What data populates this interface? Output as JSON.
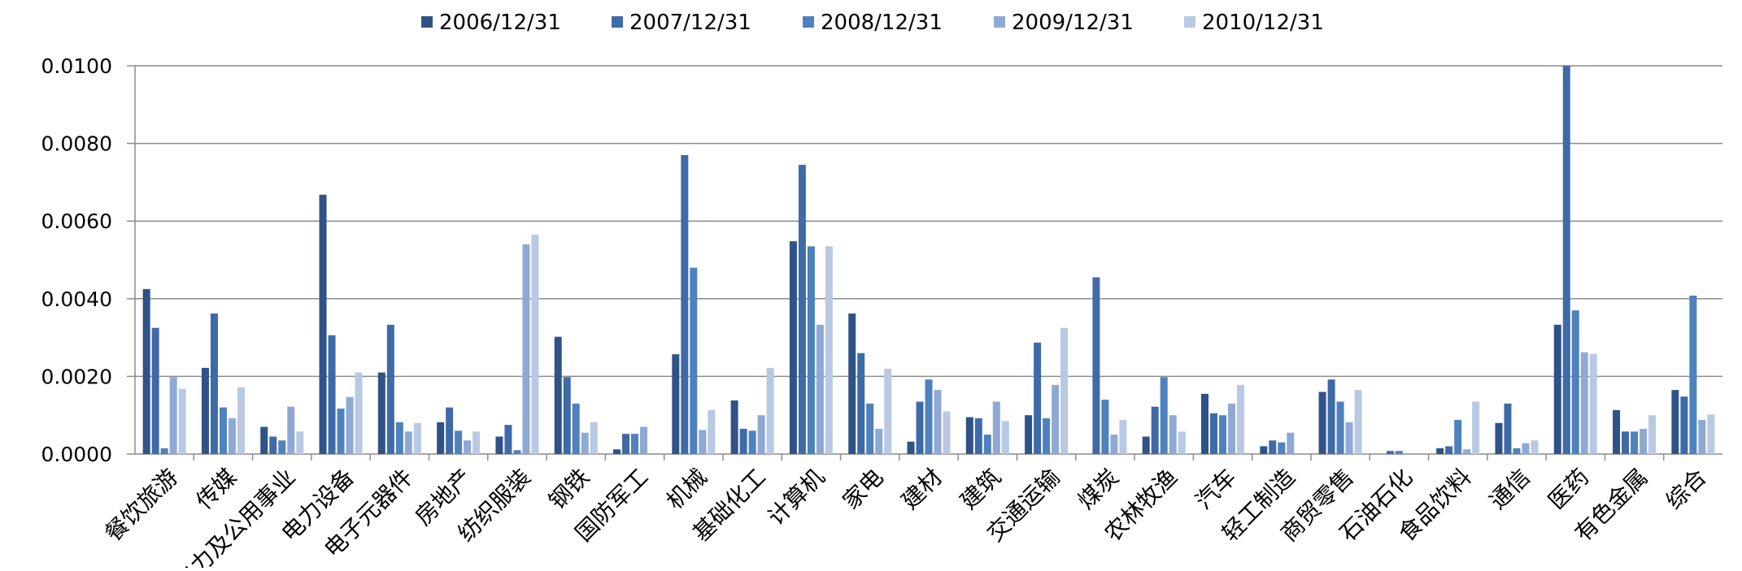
{
  "chart_data": {
    "type": "bar",
    "title": "",
    "xlabel": "",
    "ylabel": "",
    "ylim": [
      0,
      0.01
    ],
    "yticks": [
      "0.0000",
      "0.0020",
      "0.0040",
      "0.0060",
      "0.0080",
      "0.0100"
    ],
    "grid": true,
    "legend_position": "top",
    "categories": [
      "餐饮旅游",
      "传媒",
      "电力及公用事业",
      "电力设备",
      "电子元器件",
      "房地产",
      "纺织服装",
      "钢铁",
      "国防军工",
      "机械",
      "基础化工",
      "计算机",
      "家电",
      "建材",
      "建筑",
      "交通运输",
      "煤炭",
      "农林牧渔",
      "汽车",
      "轻工制造",
      "商贸零售",
      "石油石化",
      "食品饮料",
      "通信",
      "医药",
      "有色金属",
      "综合"
    ],
    "series": [
      {
        "name": "2006/12/31",
        "color": "#2f5288",
        "values": [
          0.00425,
          0.00222,
          0.0007,
          0.00668,
          0.0021,
          0.00082,
          0.00045,
          0.00302,
          0.00012,
          0.00257,
          0.00138,
          0.00548,
          0.00362,
          0.00032,
          0.00095,
          0.001,
          0.0,
          0.00045,
          0.00155,
          0.0002,
          0.0016,
          0.0,
          0.00015,
          0.0008,
          0.00333,
          0.00113,
          0.00165
        ]
      },
      {
        "name": "2007/12/31",
        "color": "#3f6aa8",
        "values": [
          0.00325,
          0.00362,
          0.00045,
          0.00306,
          0.00333,
          0.0012,
          0.00075,
          0.00198,
          0.00052,
          0.0077,
          0.00065,
          0.00745,
          0.0026,
          0.00135,
          0.00092,
          0.00287,
          0.00455,
          0.00122,
          0.00105,
          0.00035,
          0.00192,
          8e-05,
          0.0002,
          0.0013,
          0.01,
          0.00058,
          0.00148
        ]
      },
      {
        "name": "2008/12/31",
        "color": "#4f81bd",
        "values": [
          0.00015,
          0.0012,
          0.00035,
          0.00117,
          0.00082,
          0.0006,
          0.0001,
          0.0013,
          0.00052,
          0.0048,
          0.0006,
          0.00535,
          0.0013,
          0.00192,
          0.0005,
          0.00092,
          0.0014,
          0.00198,
          0.001,
          0.0003,
          0.00135,
          8e-05,
          0.00088,
          0.00015,
          0.0037,
          0.00058,
          0.00408
        ]
      },
      {
        "name": "2009/12/31",
        "color": "#8ea9d4",
        "values": [
          0.00198,
          0.00092,
          0.00122,
          0.00147,
          0.00058,
          0.00035,
          0.0054,
          0.00055,
          0.0007,
          0.00062,
          0.001,
          0.00333,
          0.00065,
          0.00165,
          0.00135,
          0.00178,
          0.0005,
          0.001,
          0.0013,
          0.00055,
          0.00082,
          0.0,
          0.00012,
          0.00028,
          0.00262,
          0.00065,
          0.00088
        ]
      },
      {
        "name": "2010/12/31",
        "color": "#b9c9e4",
        "values": [
          0.00168,
          0.00172,
          0.00058,
          0.0021,
          0.0008,
          0.00058,
          0.00565,
          0.00082,
          0.0,
          0.00113,
          0.00222,
          0.00535,
          0.0022,
          0.0011,
          0.00085,
          0.00325,
          0.00088,
          0.00058,
          0.00178,
          0.0,
          0.00165,
          0.0,
          0.00135,
          0.00035,
          0.00258,
          0.001,
          0.00102
        ]
      }
    ]
  }
}
